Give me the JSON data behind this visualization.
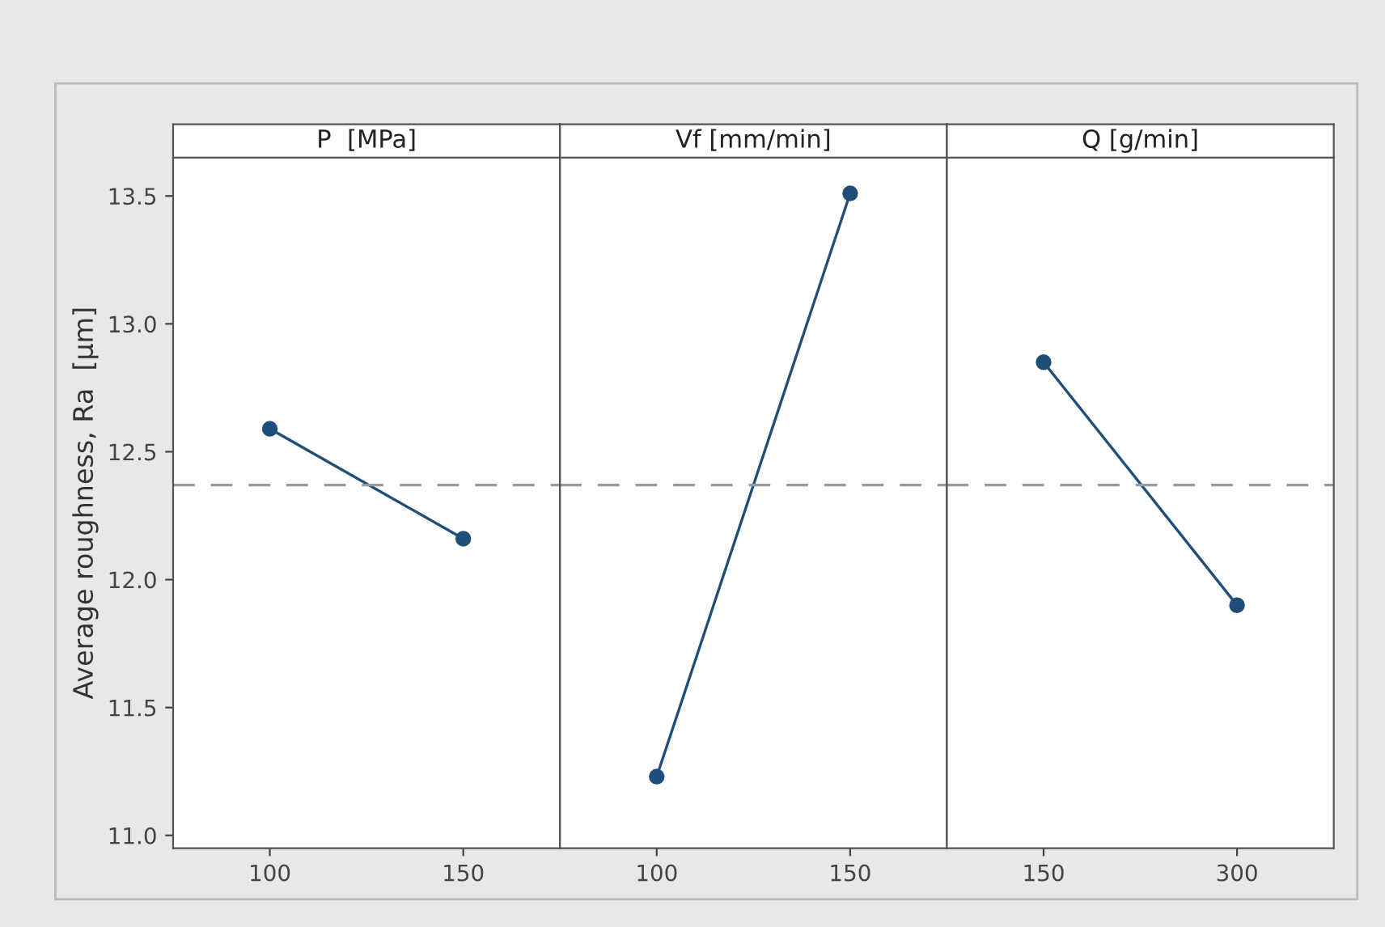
{
  "chart_data": [
    {
      "type": "line",
      "title": "P  [MPa]",
      "ylabel": "Average roughness, Ra  [µm]",
      "categories": [
        "100",
        "150"
      ],
      "series": [
        {
          "color": "#1f4e79",
          "values": [
            12.59,
            12.16
          ]
        }
      ],
      "ylim": [
        10.95,
        13.65
      ],
      "yticks": [
        {
          "value": 11.0,
          "label": "11.0"
        },
        {
          "value": 11.5,
          "label": "11.5"
        },
        {
          "value": 12.0,
          "label": "12.0"
        },
        {
          "value": 12.5,
          "label": "12.5"
        },
        {
          "value": 13.0,
          "label": "13.0"
        },
        {
          "value": 13.5,
          "label": "13.5"
        }
      ],
      "ref_lines": [
        {
          "axis": "y",
          "value": 12.37,
          "color": "#999999",
          "line_style": "dashed"
        }
      ],
      "marker": "circle",
      "line_style": "solid",
      "grid": false,
      "legend": false
    },
    {
      "type": "line",
      "title": "Vf [mm/min]",
      "categories": [
        "100",
        "150"
      ],
      "series": [
        {
          "color": "#1f4e79",
          "values": [
            11.23,
            13.51
          ]
        }
      ],
      "ylim": [
        10.95,
        13.65
      ],
      "ref_lines": [
        {
          "axis": "y",
          "value": 12.37,
          "color": "#999999",
          "line_style": "dashed"
        }
      ],
      "marker": "circle",
      "line_style": "solid",
      "grid": false,
      "legend": false,
      "tick_labels": "x"
    },
    {
      "type": "line",
      "title": "Q [g/min]",
      "categories": [
        "150",
        "300"
      ],
      "series": [
        {
          "color": "#1f4e79",
          "values": [
            12.85,
            11.9
          ]
        }
      ],
      "ylim": [
        10.95,
        13.65
      ],
      "ref_lines": [
        {
          "axis": "y",
          "value": 12.37,
          "color": "#999999",
          "line_style": "dashed"
        }
      ],
      "marker": "circle",
      "line_style": "solid",
      "grid": false,
      "legend": false,
      "tick_labels": "x"
    }
  ]
}
